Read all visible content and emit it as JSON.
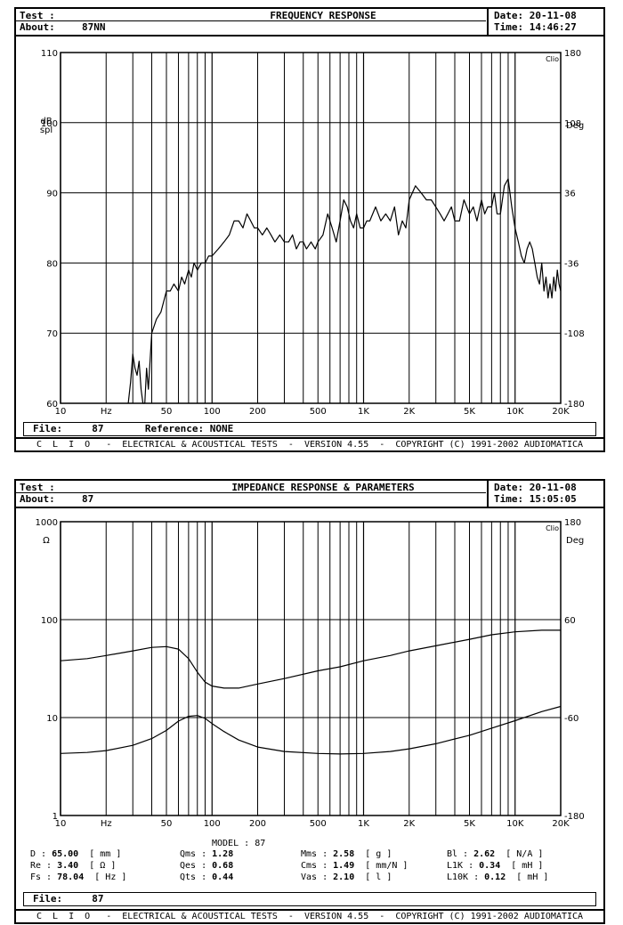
{
  "charts_meta": [
    {
      "test_label": "Test :",
      "about_label": "About:",
      "about_value": "87NN",
      "title": "FREQUENCY RESPONSE",
      "date_label": "Date:",
      "date_value": "20-11-08",
      "time_label": "Time:",
      "time_value": "14:46:27",
      "file_label": "File:",
      "file_value": "87",
      "reference_label": "Reference:",
      "reference_value": "NONE",
      "footer": "C  L  I  O   -  ELECTRICAL & ACOUSTICAL TESTS  -  VERSION 4.55  -  COPYRIGHT (C) 1991-2002 AUDIOMATICA",
      "clio_tag": "Clio"
    },
    {
      "test_label": "Test :",
      "about_label": "About:",
      "about_value": "87",
      "title": "IMPEDANCE RESPONSE & PARAMETERS",
      "date_label": "Date:",
      "date_value": "20-11-08",
      "time_label": "Time:",
      "time_value": "15:05:05",
      "file_label": "File:",
      "file_value": "87",
      "footer": "C  L  I  O   -  ELECTRICAL & ACOUSTICAL TESTS  -  VERSION 4.55  -  COPYRIGHT (C) 1991-2002 AUDIOMATICA",
      "clio_tag": "Clio",
      "model_label": "MODEL :",
      "model_value": "87",
      "parameters": [
        {
          "name": "D :",
          "value": "65.00",
          "unit": "[ mm ]"
        },
        {
          "name": "Re :",
          "value": "3.40",
          "unit": "[ Ω ]"
        },
        {
          "name": "Fs :",
          "value": "78.04",
          "unit": "[ Hz ]"
        },
        {
          "name": "Qms :",
          "value": "1.28",
          "unit": ""
        },
        {
          "name": "Qes :",
          "value": "0.68",
          "unit": ""
        },
        {
          "name": "Qts :",
          "value": "0.44",
          "unit": ""
        },
        {
          "name": "Mms :",
          "value": "2.58",
          "unit": "[ g ]"
        },
        {
          "name": "Cms :",
          "value": "1.49",
          "unit": "[ mm/N ]"
        },
        {
          "name": "Vas :",
          "value": "2.10",
          "unit": "[ l ]"
        },
        {
          "name": "Bl :",
          "value": "2.62",
          "unit": "[ N/A ]"
        },
        {
          "name": "L1K :",
          "value": "0.34",
          "unit": "[ mH ]"
        },
        {
          "name": "L10K :",
          "value": "0.12",
          "unit": "[ mH ]"
        }
      ]
    }
  ],
  "chart_data": [
    {
      "type": "line",
      "xscale": "log",
      "xlim": [
        10,
        20000
      ],
      "ylim": [
        60,
        110
      ],
      "y2lim": [
        -180,
        180
      ],
      "xticks": [
        10,
        20,
        50,
        100,
        200,
        500,
        1000,
        2000,
        5000,
        10000,
        20000
      ],
      "xtick_labels": [
        "10",
        "Hz",
        "50",
        "100",
        "200",
        "500",
        "1K",
        "2K",
        "5K",
        "10K",
        "20K"
      ],
      "yticks": [
        60,
        70,
        80,
        90,
        100,
        110
      ],
      "ytick_labels": [
        "60",
        "70",
        "80",
        "90",
        "100",
        "110"
      ],
      "y2ticks": [
        -180,
        -108,
        -36,
        36,
        108,
        180
      ],
      "y2tick_labels": [
        "-180",
        "-108",
        "-36",
        "36",
        "108",
        "180"
      ],
      "ylabel": [
        "dB",
        "spl"
      ],
      "y2label": "Deg",
      "series": [
        {
          "x": [
            28,
            29,
            30,
            31,
            32,
            33,
            34,
            35,
            36,
            37,
            38,
            40,
            43,
            46,
            50,
            53,
            56,
            60,
            63,
            66,
            70,
            73,
            76,
            80,
            85,
            90,
            95,
            100,
            110,
            120,
            130,
            140,
            150,
            160,
            170,
            180,
            190,
            200,
            215,
            230,
            245,
            260,
            280,
            300,
            320,
            340,
            360,
            380,
            400,
            420,
            450,
            480,
            500,
            540,
            580,
            620,
            660,
            700,
            740,
            780,
            820,
            860,
            900,
            950,
            1000,
            1050,
            1100,
            1200,
            1300,
            1400,
            1500,
            1600,
            1700,
            1800,
            1900,
            2000,
            2200,
            2400,
            2600,
            2800,
            3000,
            3200,
            3400,
            3600,
            3800,
            4000,
            4300,
            4600,
            5000,
            5300,
            5600,
            6000,
            6300,
            6600,
            7000,
            7300,
            7600,
            8000,
            8500,
            9000,
            9500,
            10000,
            10500,
            11000,
            11500,
            12000,
            12500,
            13000,
            13500,
            14000,
            14500,
            15000,
            15500,
            16000,
            16500,
            17000,
            17500,
            18000,
            18500,
            19000,
            19500,
            20000
          ],
          "y": [
            60,
            63,
            67,
            65,
            64,
            66,
            62,
            60,
            60,
            65,
            62,
            70,
            72,
            73,
            76,
            76,
            77,
            76,
            78,
            77,
            79,
            78,
            80,
            79,
            80,
            80,
            81,
            81,
            82,
            83,
            84,
            86,
            86,
            85,
            87,
            86,
            85,
            85,
            84,
            85,
            84,
            83,
            84,
            83,
            83,
            84,
            82,
            83,
            83,
            82,
            83,
            82,
            83,
            84,
            87,
            85,
            83,
            86,
            89,
            88,
            86,
            85,
            87,
            85,
            85,
            86,
            86,
            88,
            86,
            87,
            86,
            88,
            84,
            86,
            85,
            89,
            91,
            90,
            89,
            89,
            88,
            87,
            86,
            87,
            88,
            86,
            86,
            89,
            87,
            88,
            86,
            89,
            87,
            88,
            88,
            90,
            87,
            87,
            91,
            92,
            88,
            85,
            83,
            81,
            80,
            82,
            83,
            82,
            80,
            78,
            77,
            80,
            76,
            78,
            75,
            77,
            75,
            78,
            76,
            79,
            77,
            76
          ]
        }
      ]
    },
    {
      "type": "line",
      "xscale": "log",
      "yscale": "log",
      "xlim": [
        10,
        20000
      ],
      "ylim": [
        1,
        1000
      ],
      "y2lim": [
        -180,
        180
      ],
      "xticks": [
        10,
        20,
        50,
        100,
        200,
        500,
        1000,
        2000,
        5000,
        10000,
        20000
      ],
      "xtick_labels": [
        "10",
        "Hz",
        "50",
        "100",
        "200",
        "500",
        "1K",
        "2K",
        "5K",
        "10K",
        "20K"
      ],
      "yticks": [
        1,
        10,
        100,
        1000
      ],
      "ytick_labels": [
        "1",
        "10",
        "100",
        "1000"
      ],
      "y2ticks": [
        -180,
        -60,
        60,
        180
      ],
      "y2tick_labels": [
        "-180",
        "-60",
        "60",
        "180"
      ],
      "ylabel": "Ω",
      "y2label": "Deg",
      "series": [
        {
          "x": [
            10,
            15,
            20,
            30,
            40,
            50,
            60,
            70,
            80,
            90,
            100,
            120,
            150,
            200,
            300,
            500,
            700,
            1000,
            1500,
            2000,
            3000,
            5000,
            7000,
            10000,
            15000,
            20000
          ],
          "y": [
            38,
            40,
            43,
            48,
            52,
            53,
            50,
            40,
            29,
            23,
            21,
            20,
            20,
            22,
            25,
            30,
            33,
            38,
            43,
            48,
            54,
            63,
            70,
            75,
            78,
            78
          ]
        },
        {
          "x": [
            10,
            15,
            20,
            30,
            40,
            50,
            60,
            70,
            80,
            90,
            100,
            120,
            150,
            200,
            300,
            500,
            700,
            1000,
            1500,
            2000,
            3000,
            5000,
            7000,
            10000,
            15000,
            20000
          ],
          "y": [
            4.3,
            4.4,
            4.6,
            5.2,
            6.1,
            7.4,
            9.2,
            10.3,
            10.5,
            9.8,
            8.7,
            7.2,
            5.9,
            5.0,
            4.5,
            4.3,
            4.25,
            4.3,
            4.5,
            4.8,
            5.4,
            6.6,
            7.8,
            9.3,
            11.5,
            13
          ]
        }
      ]
    }
  ]
}
